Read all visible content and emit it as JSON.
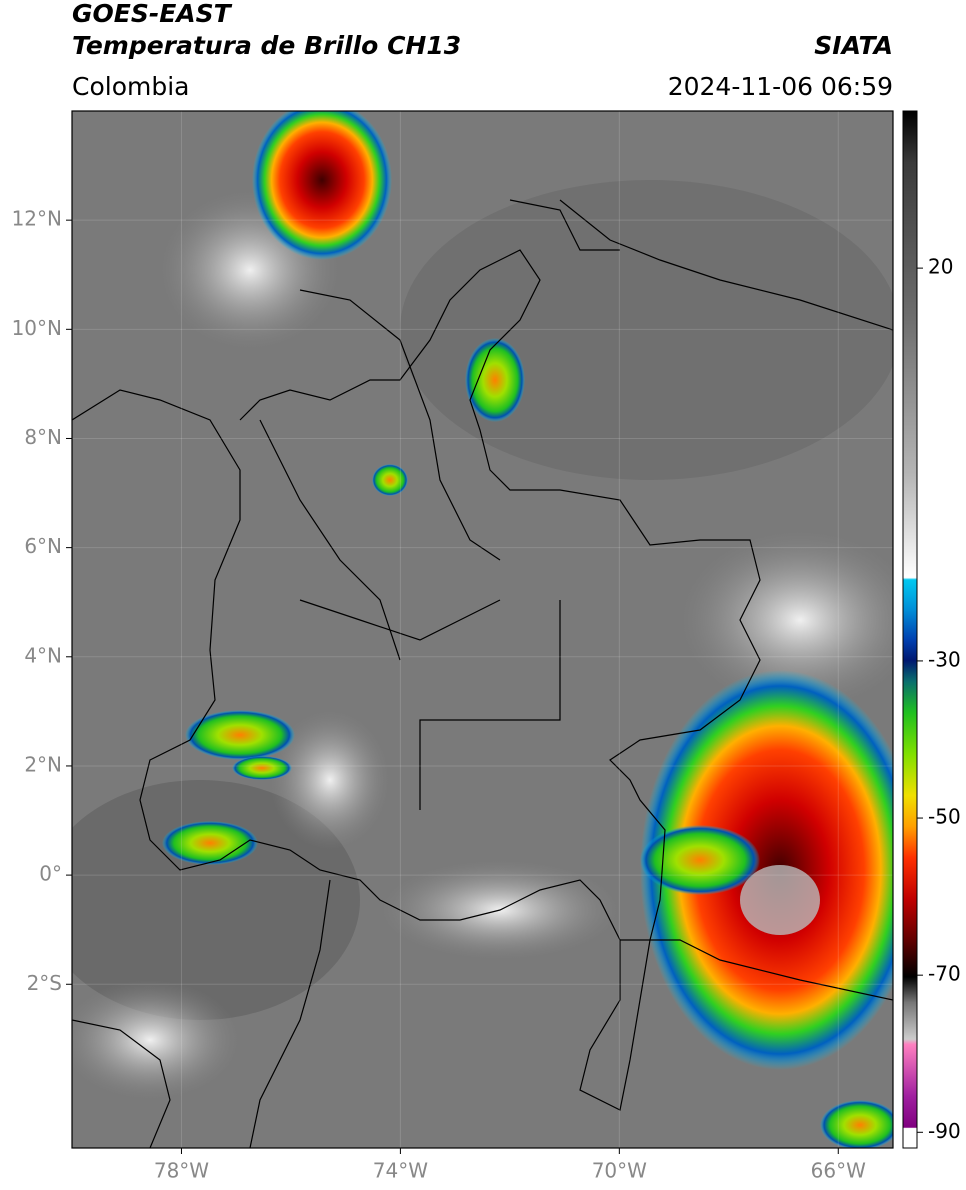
{
  "header": {
    "line1": "GOES-EAST",
    "line2": "Temperatura de Brillo CH13",
    "source": "SIATA",
    "region": "Colombia",
    "datetime": "2024-11-06 06:59"
  },
  "map": {
    "xlim": [
      -80,
      -65
    ],
    "ylim": [
      -5,
      14
    ],
    "xticks": [
      {
        "value": -78,
        "label": "78°W"
      },
      {
        "value": -74,
        "label": "74°W"
      },
      {
        "value": -70,
        "label": "70°W"
      },
      {
        "value": -66,
        "label": "66°W"
      }
    ],
    "yticks": [
      {
        "value": 12,
        "label": "12°N"
      },
      {
        "value": 10,
        "label": "10°N"
      },
      {
        "value": 8,
        "label": "8°N"
      },
      {
        "value": 6,
        "label": "6°N"
      },
      {
        "value": 4,
        "label": "4°N"
      },
      {
        "value": 2,
        "label": "2°N"
      },
      {
        "value": 0,
        "label": "0°"
      },
      {
        "value": -2,
        "label": "2°S"
      }
    ]
  },
  "colorbar": {
    "lim": [
      -92,
      40
    ],
    "ticks": [
      20,
      -30,
      -50,
      -70,
      -90
    ]
  }
}
